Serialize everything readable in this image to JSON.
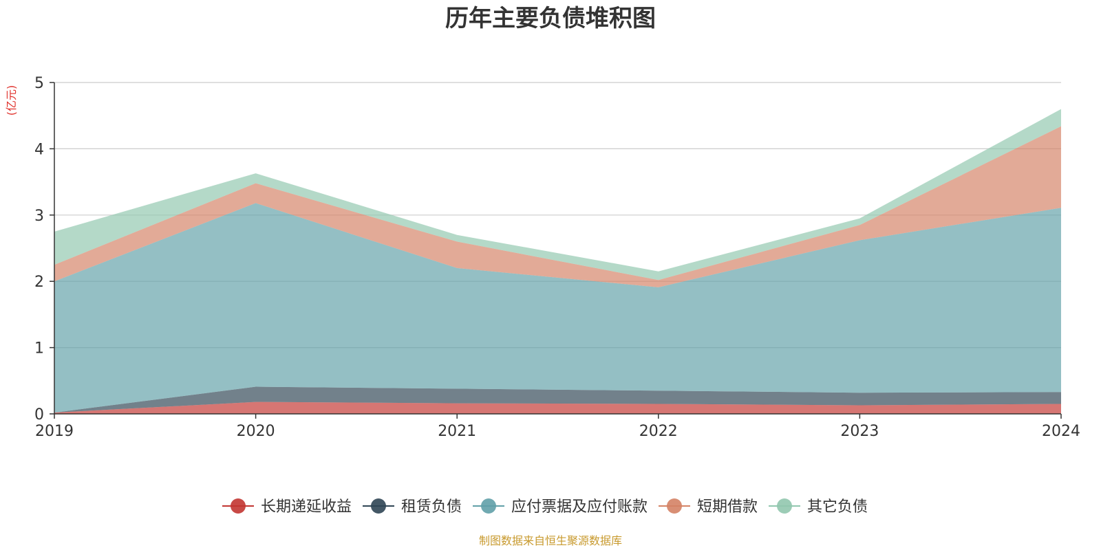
{
  "chart_data": {
    "type": "area",
    "stacked": true,
    "title": "历年主要负债堆积图",
    "y_unit": "(亿元)",
    "x": [
      "2019",
      "2020",
      "2021",
      "2022",
      "2023",
      "2024"
    ],
    "ylim": [
      0,
      5
    ],
    "yticks": [
      "0",
      "1",
      "2",
      "3",
      "4",
      "5"
    ],
    "grid": true,
    "legend_position": "bottom",
    "series": [
      {
        "name": "长期递延收益",
        "color": "#c23531",
        "values": [
          0.02,
          0.18,
          0.16,
          0.15,
          0.13,
          0.15
        ]
      },
      {
        "name": "租赁负债",
        "color": "#2f4554",
        "values": [
          0.0,
          0.23,
          0.22,
          0.2,
          0.19,
          0.18
        ]
      },
      {
        "name": "应付票据及应付账款",
        "color": "#61a0a8",
        "values": [
          1.98,
          2.77,
          1.82,
          1.56,
          2.3,
          2.78
        ]
      },
      {
        "name": "短期借款",
        "color": "#d48265",
        "values": [
          0.25,
          0.3,
          0.4,
          0.11,
          0.23,
          1.23
        ]
      },
      {
        "name": "其它负债",
        "color": "#91c7ae",
        "values": [
          0.5,
          0.15,
          0.1,
          0.13,
          0.1,
          0.26
        ]
      }
    ]
  },
  "source_text": "制图数据来自恒生聚源数据库",
  "colors": {
    "unit_label": "#e0312b",
    "source_text": "#c89a2e",
    "axis": "#333333",
    "grid": "#cccccc"
  }
}
